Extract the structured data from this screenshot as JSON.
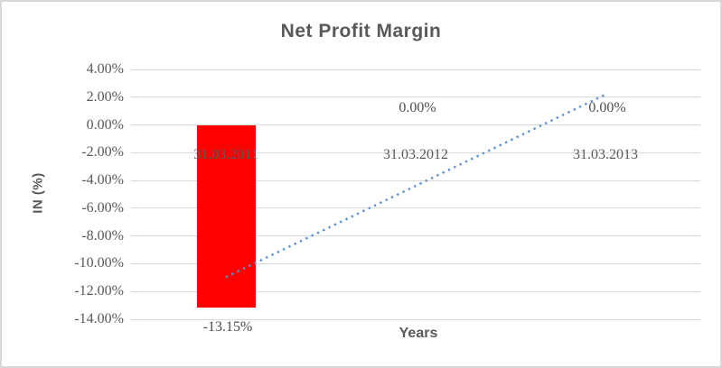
{
  "chart_data": {
    "type": "bar",
    "title": "Net Profit Margin",
    "xlabel": "Years",
    "ylabel": "IN (%)",
    "categories": [
      "31.03.2011",
      "31.03.2012",
      "31.03.2013"
    ],
    "series": [
      {
        "name": "Net Profit Margin",
        "values": [
          -13.15,
          0.0,
          0.0
        ]
      }
    ],
    "data_labels": [
      "-13.15%",
      "0.00%",
      "0.00%"
    ],
    "ylim": [
      -14,
      4
    ],
    "ytick_step": 2,
    "ytick_labels": [
      "4.00%",
      "2.00%",
      "0.00%",
      "-2.00%",
      "-4.00%",
      "-6.00%",
      "-8.00%",
      "-10.00%",
      "-12.00%",
      "-14.00%"
    ],
    "grid": true,
    "legend": false,
    "trendline": {
      "type": "linear",
      "style": "dotted",
      "start_value": -10.96,
      "end_value": 2.19
    },
    "colors": {
      "bar": "#ff0000",
      "trendline": "#5b92d2",
      "gridline": "#d9d9d9",
      "text": "#595959",
      "title": "#595959",
      "background": "#ffffff",
      "frame_border": "#d8d8d8"
    }
  }
}
